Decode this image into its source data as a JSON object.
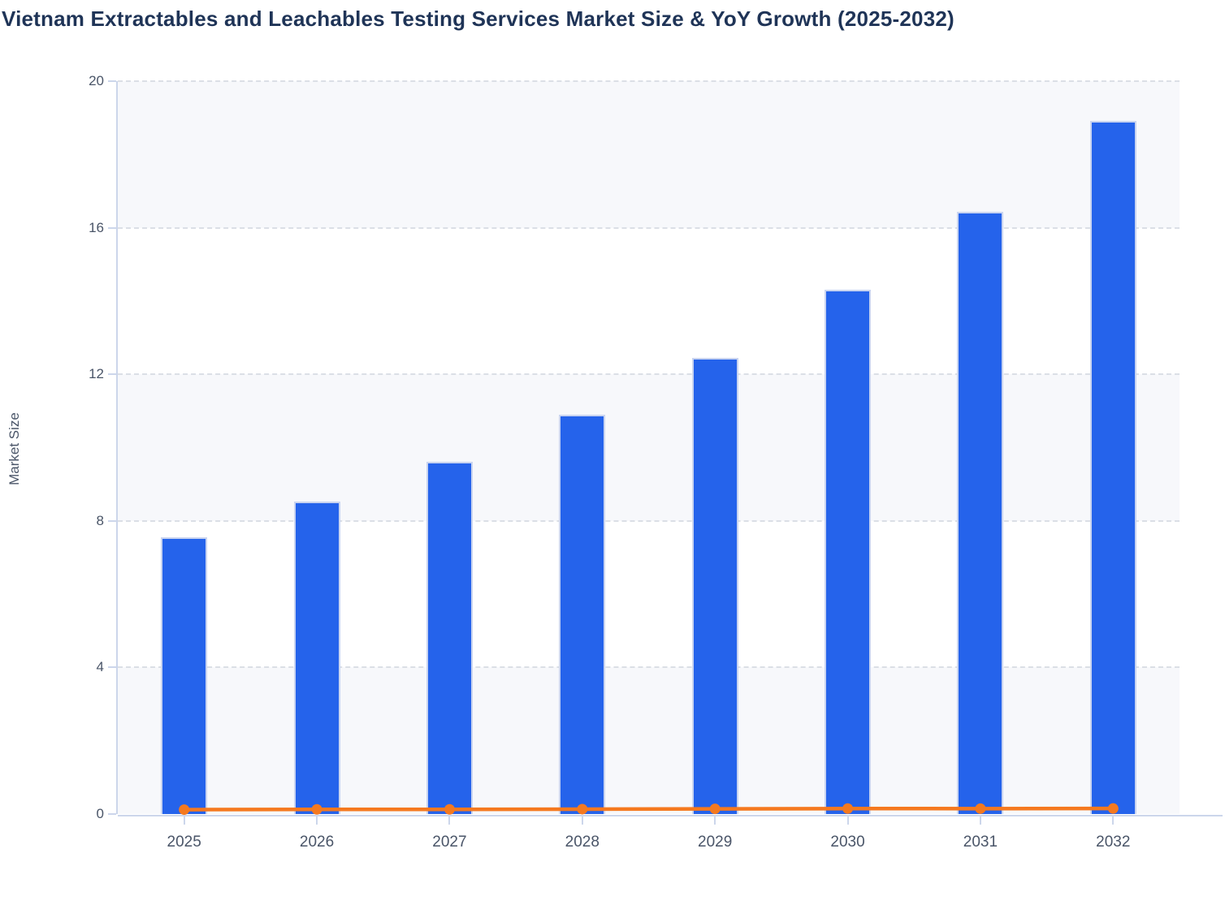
{
  "chart_data": {
    "type": "bar",
    "title": "Vietnam Extractables and Leachables Testing Services Market Size & YoY Growth (2025-2032)",
    "subtitle": "",
    "categories": [
      "2025",
      "2026",
      "2027",
      "2028",
      "2029",
      "2030",
      "2031",
      "2032"
    ],
    "series": [
      {
        "name": "Market Size",
        "type": "column",
        "color": "#2563EB",
        "values": [
          7.55,
          8.52,
          9.61,
          10.9,
          12.45,
          14.31,
          16.43,
          18.91
        ]
      },
      {
        "name": "YoY Growth",
        "type": "line",
        "color": "#F5791F",
        "values": [
          0.12,
          0.128,
          0.128,
          0.134,
          0.142,
          0.149,
          0.148,
          0.151
        ]
      }
    ],
    "xlabel": "",
    "ylabel": "Market Size",
    "ylim": [
      0,
      20
    ],
    "yticks": [
      0,
      4,
      8,
      12,
      16,
      20
    ],
    "grid": "horizontal-dashed",
    "alternate_bands": true,
    "legend": "none"
  },
  "colors": {
    "bar": "#2563EB",
    "bar_border": "#C9D4F0",
    "line": "#F5791F",
    "title": "#1F3457",
    "axis_label": "#4A5568",
    "band": "#F7F8FB",
    "gridline": "#DBDFE6",
    "axis_line": "#CCD6EB",
    "background": "#FFFFFF"
  }
}
